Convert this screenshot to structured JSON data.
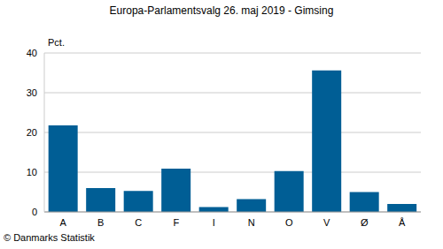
{
  "chart_data": {
    "type": "bar",
    "title": "Europa-Parlamentsvalg 26. maj 2019 - Gimsing",
    "y_label": "Pct.",
    "annotation": "© Danmarks Statistik",
    "categories": [
      "A",
      "B",
      "C",
      "F",
      "I",
      "N",
      "O",
      "V",
      "Ø",
      "Å"
    ],
    "values": [
      21.8,
      6.0,
      5.3,
      10.9,
      1.2,
      3.2,
      10.3,
      35.6,
      5.0,
      2.0
    ],
    "color": "#005e95",
    "ylim": [
      0,
      40
    ],
    "yticks": [
      0,
      10,
      20,
      30,
      40
    ],
    "grid": true
  }
}
